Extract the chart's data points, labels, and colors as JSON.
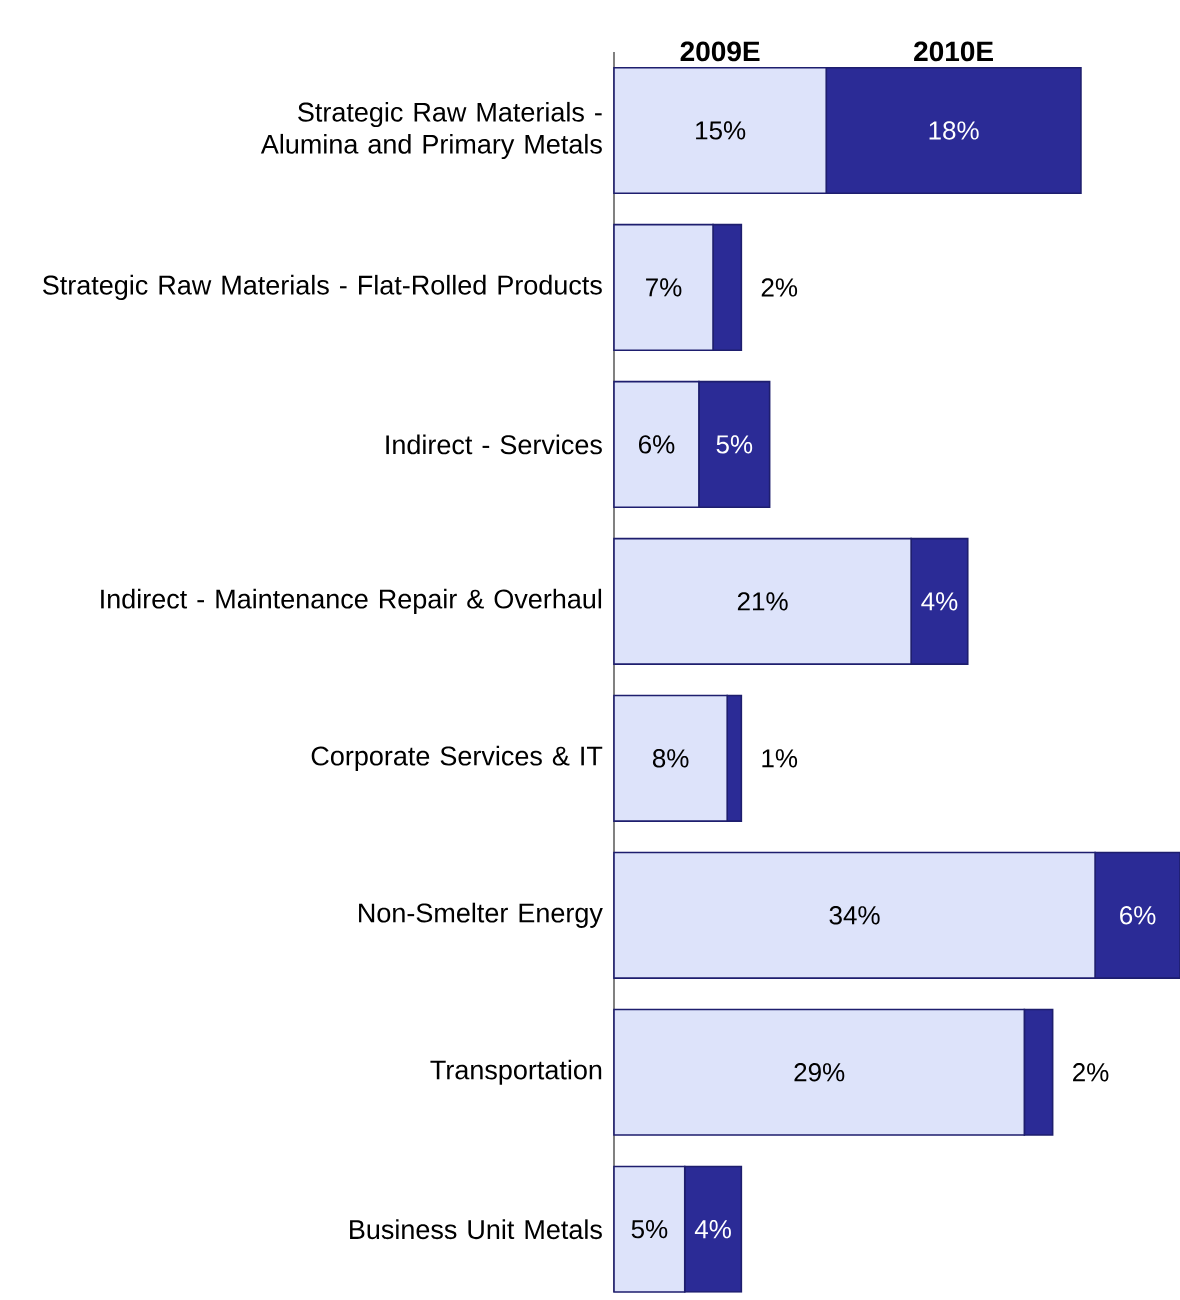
{
  "chart_data": {
    "type": "bar",
    "orientation": "horizontal",
    "stacked": true,
    "categories": [
      "Strategic Raw Materials - Alumina and Primary Metals",
      "Strategic Raw Materials - Flat-Rolled Products",
      "Indirect - Services",
      "Indirect - Maintenance Repair & Overhaul",
      "Corporate Services & IT",
      "Non-Smelter Energy",
      "Transportation",
      "Business Unit Metals"
    ],
    "xlim": [
      0,
      40
    ],
    "series": [
      {
        "name": "2009E",
        "color": "#dde3fa",
        "values": [
          15,
          7,
          6,
          21,
          8,
          34,
          29,
          5
        ],
        "value_labels": [
          "15%",
          "7%",
          "6%",
          "21%",
          "8%",
          "34%",
          "29%",
          "5%"
        ]
      },
      {
        "name": "2010E",
        "color": "#2b2b96",
        "values": [
          18,
          2,
          5,
          4,
          1,
          6,
          2,
          4
        ],
        "value_labels": [
          "18%",
          "2%",
          "5%",
          "4%",
          "1%",
          "6%",
          "2%",
          "4%"
        ]
      }
    ]
  }
}
